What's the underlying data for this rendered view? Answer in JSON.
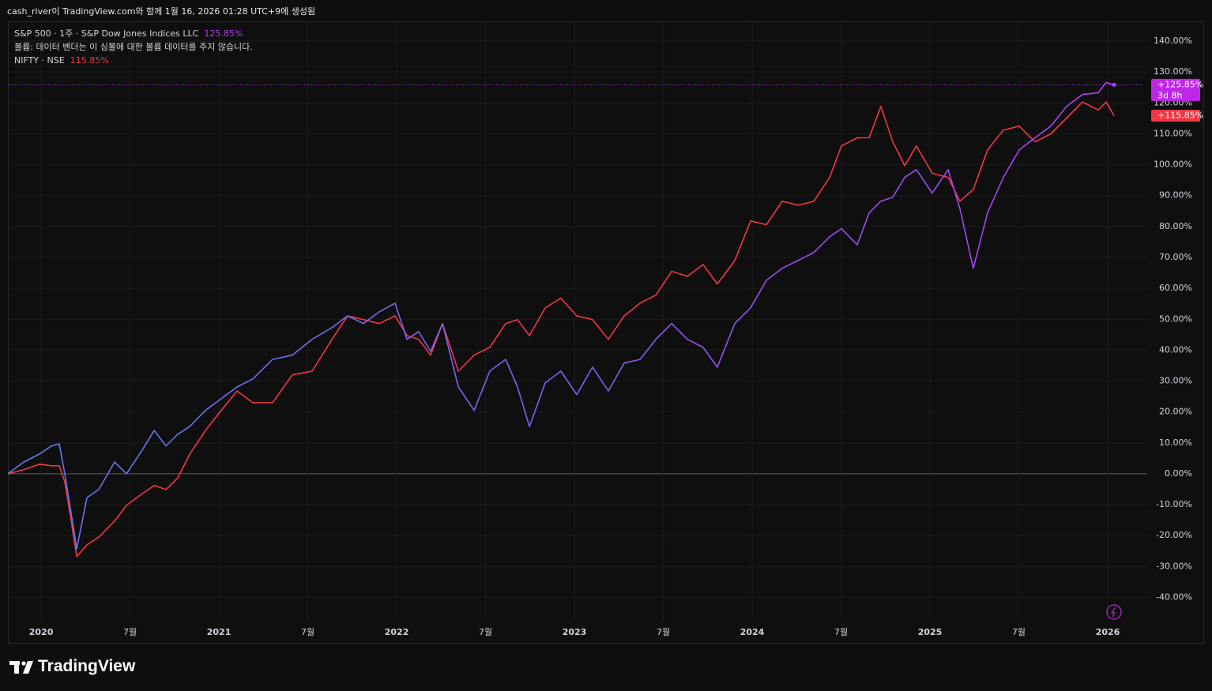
{
  "header": {
    "caption": "cash_river이 TradingView.com와 함께 1월 16, 2026 01:28 UTC+9에 생성됨"
  },
  "chart_data": {
    "type": "line",
    "notice": "볼륨: 데이터 벤더는 이 심볼에 대한 볼륨 데이터를 주지 않습니다.",
    "x": [
      2019.813,
      2019.902,
      2019.991,
      2020.058,
      2020.102,
      2020.133,
      2020.169,
      2020.2,
      2020.258,
      2020.324,
      2020.413,
      2020.48,
      2020.569,
      2020.636,
      2020.702,
      2020.769,
      2020.836,
      2020.924,
      2021.013,
      2021.102,
      2021.191,
      2021.302,
      2021.413,
      2021.524,
      2021.636,
      2021.724,
      2021.813,
      2021.902,
      2021.991,
      2022.058,
      2022.124,
      2022.191,
      2022.258,
      2022.347,
      2022.436,
      2022.524,
      2022.613,
      2022.68,
      2022.747,
      2022.836,
      2022.924,
      2023.013,
      2023.102,
      2023.191,
      2023.28,
      2023.369,
      2023.458,
      2023.547,
      2023.636,
      2023.724,
      2023.804,
      2023.902,
      2023.991,
      2024.08,
      2024.169,
      2024.258,
      2024.347,
      2024.436,
      2024.502,
      2024.591,
      2024.658,
      2024.724,
      2024.791,
      2024.858,
      2024.924,
      2025.013,
      2025.102,
      2025.169,
      2025.244,
      2025.324,
      2025.413,
      2025.502,
      2025.591,
      2025.68,
      2025.769,
      2025.858,
      2025.947,
      2025.991,
      2026.036
    ],
    "xlim": [
      2019.813,
      2026.2
    ],
    "xticks": [
      2020,
      {
        "value": 2020.5,
        "label": "7월"
      },
      2021,
      {
        "value": 2021.5,
        "label": "7월"
      },
      2022,
      {
        "value": 2022.5,
        "label": "7월"
      },
      2023,
      {
        "value": 2023.5,
        "label": "7월"
      },
      2024,
      {
        "value": 2024.5,
        "label": "7월"
      },
      2025,
      {
        "value": 2025.5,
        "label": "7월"
      },
      2026
    ],
    "ylim": [
      -47.8,
      146.4
    ],
    "yticks": [
      {
        "value": 140,
        "label": "140.00%"
      },
      {
        "value": 130,
        "label": "130.00%"
      },
      {
        "value": 120,
        "label": "120.00%"
      },
      {
        "value": 110,
        "label": "110.00%"
      },
      {
        "value": 100,
        "label": "100.00%"
      },
      {
        "value": 90,
        "label": "90.00%"
      },
      {
        "value": 80,
        "label": "80.00%"
      },
      {
        "value": 70,
        "label": "70.00%"
      },
      {
        "value": 60,
        "label": "60.00%"
      },
      {
        "value": 50,
        "label": "50.00%"
      },
      {
        "value": 40,
        "label": "40.00%"
      },
      {
        "value": 30,
        "label": "30.00%"
      },
      {
        "value": 20,
        "label": "20.00%"
      },
      {
        "value": 10,
        "label": "10.00%"
      },
      {
        "value": 0,
        "label": "0.00%"
      },
      {
        "value": -10,
        "label": "-10.00%"
      },
      {
        "value": -20,
        "label": "-20.00%"
      },
      {
        "value": -30,
        "label": "-30.00%"
      },
      {
        "value": -40,
        "label": "-40.00%"
      }
    ],
    "grid": true,
    "series": [
      {
        "name": "S&P 500 · 1주 · S&P Dow Jones Indices LLC",
        "color": "#5a7cf0",
        "gradient_to": "#b23cf2",
        "legend_value": {
          "value": 125.85,
          "label": "125.85%"
        },
        "last_label": {
          "value": 125.85,
          "label": "+125.85%"
        },
        "countdown": "3d 8h",
        "values": [
          0,
          3.8,
          6.4,
          9,
          9.7,
          0,
          -12.8,
          -24.3,
          -7.7,
          -5.1,
          3.8,
          0,
          7.7,
          14,
          9,
          12.8,
          15.3,
          20.5,
          24.3,
          28.1,
          30.7,
          37,
          38.4,
          43.5,
          47.3,
          51.1,
          48.6,
          52.4,
          55.2,
          43.5,
          46,
          39.6,
          48.6,
          28.1,
          20.5,
          33.2,
          37,
          28.1,
          15.3,
          29.4,
          33.2,
          25.6,
          34.5,
          26.8,
          35.8,
          37,
          43.5,
          48.6,
          43.5,
          40.9,
          34.5,
          48.6,
          53.7,
          62.6,
          66.5,
          69,
          71.6,
          76.7,
          79.3,
          74.1,
          84.4,
          88.2,
          89.5,
          95.9,
          98.4,
          90.8,
          98.4,
          85.7,
          66.5,
          84.4,
          95.9,
          104.8,
          108.7,
          112.5,
          118.9,
          122.7,
          123.3,
          126.6,
          125.85
        ]
      },
      {
        "name": "NIFTY · NSE",
        "color": "#f23645",
        "legend_value": {
          "value": 115.85,
          "label": "115.85%"
        },
        "last_label": {
          "value": 115.85,
          "label": "+115.85%"
        },
        "values": [
          0,
          1.3,
          3.1,
          2.6,
          2.6,
          -2.6,
          -15.3,
          -26.8,
          -23,
          -20.5,
          -15.3,
          -10.2,
          -6.4,
          -3.8,
          -5.1,
          -1.3,
          6.4,
          14,
          20.5,
          26.8,
          23,
          23,
          32,
          33.2,
          43.5,
          51.1,
          49.9,
          48.6,
          51.1,
          44.7,
          43.5,
          38.4,
          48.6,
          33.2,
          38.4,
          40.9,
          48.6,
          49.9,
          44.7,
          53.7,
          56.8,
          51.1,
          49.9,
          43.5,
          51.1,
          55.2,
          57.8,
          65.5,
          63.9,
          67.7,
          61.4,
          69,
          81.8,
          80.6,
          88.2,
          86.9,
          88.2,
          95.9,
          106.1,
          108.7,
          108.7,
          118.9,
          107.4,
          99.7,
          106.1,
          97.2,
          95.9,
          88.2,
          92,
          104.8,
          111.2,
          112.5,
          107.4,
          110,
          115.1,
          120.3,
          117.7,
          120.3,
          115.85
        ]
      }
    ]
  },
  "footer": {
    "brand": "TradingView"
  }
}
